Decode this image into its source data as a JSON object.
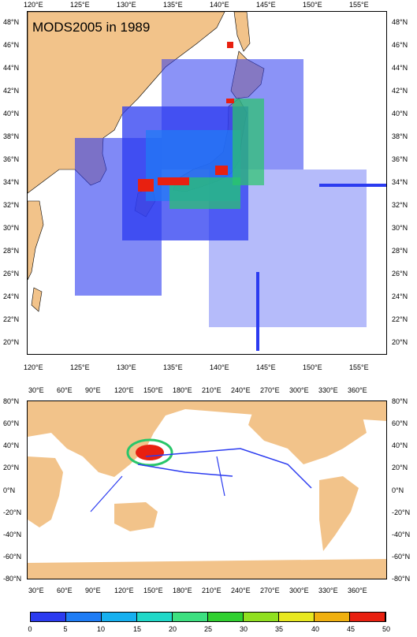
{
  "top_map": {
    "title": "MODS2005 in 1989",
    "lon_labels": [
      "120°E",
      "125°E",
      "130°E",
      "135°E",
      "140°E",
      "145°E",
      "150°E",
      "155°E"
    ],
    "lat_labels": [
      "48°N",
      "46°N",
      "44°N",
      "42°N",
      "40°N",
      "38°N",
      "36°N",
      "34°N",
      "32°N",
      "30°N",
      "28°N",
      "26°N",
      "24°N",
      "22°N",
      "20°N"
    ]
  },
  "world_map": {
    "lon_labels": [
      "30°E",
      "60°E",
      "90°E",
      "120°E",
      "150°E",
      "180°E",
      "210°E",
      "240°E",
      "270°E",
      "300°E",
      "330°E",
      "360°E"
    ],
    "lat_labels": [
      "80°N",
      "60°N",
      "40°N",
      "20°N",
      "0°N",
      "-20°N",
      "-40°N",
      "-60°N",
      "-80°N"
    ]
  },
  "colorbar": {
    "labels": [
      "0",
      "5",
      "10",
      "15",
      "20",
      "25",
      "30",
      "35",
      "40",
      "45",
      "50"
    ],
    "colors": [
      "#2b3bf0",
      "#1e7cf5",
      "#16b0f0",
      "#20d8c8",
      "#3ce080",
      "#30d030",
      "#90e020",
      "#e8e820",
      "#f0b010",
      "#e82010"
    ]
  },
  "colors": {
    "land": "#f2c38a",
    "ocean": "#ffffff",
    "low": "#2b3bf0",
    "mid": "#29c66a",
    "high": "#e82010"
  }
}
